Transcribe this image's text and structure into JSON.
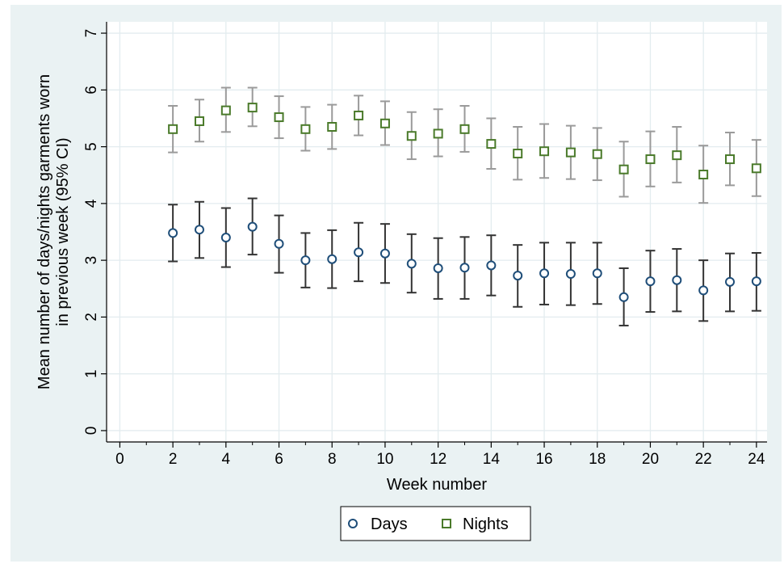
{
  "chart_data": {
    "type": "scatter",
    "title": "",
    "xlabel": "Week number",
    "ylabel_line1": "Mean number of days/nights garments worn",
    "ylabel_line2": "in previous week (95% CI)",
    "xlim": [
      -0.5,
      24.4
    ],
    "ylim": [
      -0.2,
      7.2
    ],
    "xticks": [
      0,
      2,
      4,
      6,
      8,
      10,
      12,
      14,
      16,
      18,
      20,
      22,
      24
    ],
    "xticks_minor": [
      1,
      3,
      5,
      7,
      9,
      11,
      13,
      15,
      17,
      19,
      21,
      23
    ],
    "yticks": [
      0,
      1,
      2,
      3,
      4,
      5,
      6,
      7
    ],
    "grid": "horizontal and vertical",
    "legend_position": "bottom",
    "x": [
      2,
      3,
      4,
      5,
      6,
      7,
      8,
      9,
      10,
      11,
      12,
      13,
      14,
      15,
      16,
      17,
      18,
      19,
      20,
      21,
      22,
      23,
      24
    ],
    "series": [
      {
        "name": "Days",
        "marker": "circle",
        "color": "#1f4e79",
        "ci_color": "#333333",
        "values": [
          3.48,
          3.54,
          3.4,
          3.59,
          3.29,
          3.0,
          3.02,
          3.14,
          3.12,
          2.94,
          2.86,
          2.87,
          2.91,
          2.73,
          2.77,
          2.76,
          2.77,
          2.35,
          2.63,
          2.65,
          2.47,
          2.62,
          2.63
        ],
        "ci_low": [
          2.98,
          3.04,
          2.88,
          3.1,
          2.78,
          2.52,
          2.51,
          2.63,
          2.6,
          2.43,
          2.32,
          2.32,
          2.38,
          2.18,
          2.22,
          2.21,
          2.23,
          1.85,
          2.09,
          2.1,
          1.93,
          2.1,
          2.11
        ],
        "ci_high": [
          3.98,
          4.03,
          3.92,
          4.09,
          3.79,
          3.48,
          3.53,
          3.66,
          3.64,
          3.46,
          3.39,
          3.41,
          3.44,
          3.27,
          3.31,
          3.31,
          3.31,
          2.86,
          3.17,
          3.2,
          3.0,
          3.12,
          3.13
        ]
      },
      {
        "name": "Nights",
        "marker": "square",
        "color": "#4a7a2a",
        "ci_color": "#9a9a9a",
        "values": [
          5.31,
          5.45,
          5.64,
          5.69,
          5.52,
          5.31,
          5.35,
          5.55,
          5.41,
          5.19,
          5.23,
          5.31,
          5.05,
          4.88,
          4.92,
          4.9,
          4.87,
          4.6,
          4.78,
          4.85,
          4.51,
          4.78,
          4.62
        ],
        "ci_low": [
          4.9,
          5.09,
          5.26,
          5.36,
          5.15,
          4.93,
          4.96,
          5.2,
          5.03,
          4.78,
          4.83,
          4.91,
          4.61,
          4.42,
          4.45,
          4.43,
          4.41,
          4.12,
          4.3,
          4.37,
          4.01,
          4.32,
          4.13
        ],
        "ci_high": [
          5.72,
          5.83,
          6.04,
          6.04,
          5.89,
          5.7,
          5.74,
          5.9,
          5.8,
          5.61,
          5.66,
          5.72,
          5.5,
          5.35,
          5.4,
          5.37,
          5.33,
          5.09,
          5.27,
          5.35,
          5.02,
          5.25,
          5.12
        ]
      }
    ]
  }
}
